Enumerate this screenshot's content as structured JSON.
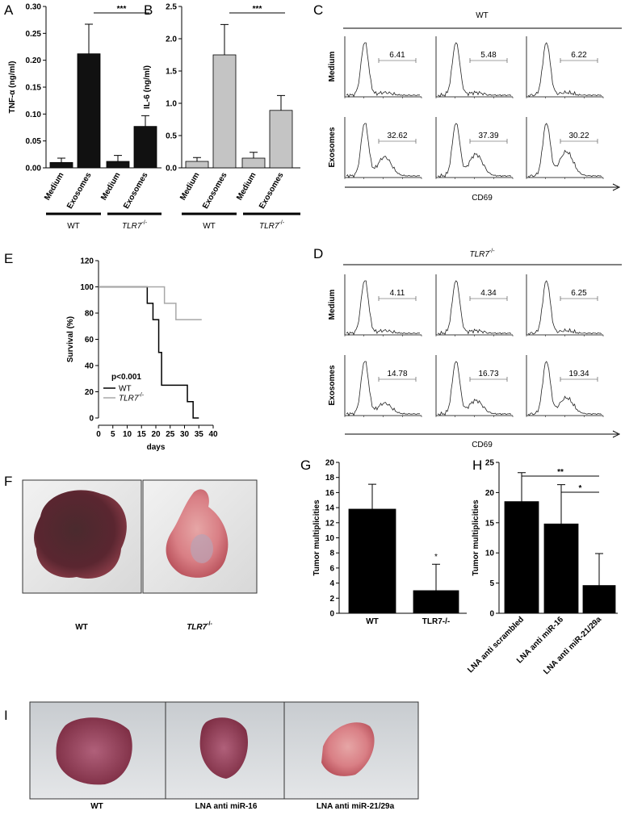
{
  "chart_data": [
    {
      "panel": "A",
      "type": "bar",
      "ylabel": "TNF-α (ng/ml)",
      "categories": [
        "Medium",
        "Exosomes",
        "Medium",
        "Exosomes"
      ],
      "values": [
        0.01,
        0.212,
        0.012,
        0.077
      ],
      "errors": [
        0.008,
        0.055,
        0.011,
        0.02
      ],
      "color": "#111111",
      "ylim": [
        0,
        0.3
      ],
      "yticks": [
        {
          "value": 0,
          "label": "0.00"
        },
        0.05,
        {
          "value": 0.1,
          "label": "0.10"
        },
        0.15,
        {
          "value": 0.2,
          "label": "0.20"
        },
        0.25,
        {
          "value": 0.3,
          "label": "0.30"
        }
      ],
      "groups": [
        {
          "name": "WT"
        },
        {
          "name": "TLR7",
          "sup": "-/-"
        }
      ],
      "annotations": [
        "***"
      ]
    },
    {
      "panel": "B",
      "type": "bar",
      "ylabel": "IL-6 (ng/ml)",
      "categories": [
        "Medium",
        "Exosomes",
        "Medium",
        "Exosomes"
      ],
      "values": [
        0.1,
        1.75,
        0.15,
        0.89
      ],
      "errors": [
        0.06,
        0.47,
        0.09,
        0.23
      ],
      "color": "#c4c4c4",
      "ylim": [
        0,
        2.5
      ],
      "yticks": [
        {
          "value": 0,
          "label": "0.0"
        },
        0.5,
        {
          "value": 1,
          "label": "1.0"
        },
        1.5,
        {
          "value": 2,
          "label": "2.0"
        },
        2.5
      ],
      "groups": [
        {
          "name": "WT"
        },
        {
          "name": "TLR7",
          "sup": "-/-"
        }
      ],
      "annotations": [
        "***"
      ]
    },
    {
      "panel": "E",
      "type": "line",
      "xlabel": "days",
      "ylabel": "Survival (%)",
      "xlim": [
        0,
        40
      ],
      "xticks": [
        0,
        5,
        10,
        15,
        20,
        25,
        30,
        35,
        40
      ],
      "ylim": [
        0,
        120
      ],
      "yticks": [
        0,
        20,
        40,
        60,
        80,
        100,
        120
      ],
      "series": [
        {
          "name": "WT",
          "color": "#000000",
          "x": [
            0,
            17,
            17,
            19,
            19,
            21,
            21,
            22,
            22,
            31,
            31,
            33,
            33,
            35
          ],
          "values": [
            100,
            100,
            87.5,
            87.5,
            75,
            75,
            50,
            50,
            25,
            25,
            12.5,
            12.5,
            0,
            0
          ]
        },
        {
          "name": "TLR7",
          "sup": "-/-",
          "color": "#a8a8a8",
          "x": [
            0,
            23,
            23,
            27,
            27,
            36
          ],
          "values": [
            100,
            100,
            87.5,
            87.5,
            75,
            75
          ]
        }
      ],
      "annotations": [
        "p<0.001"
      ]
    },
    {
      "panel": "G",
      "type": "bar",
      "ylabel": "Tumor multiplicities",
      "categories": [
        "WT",
        "TLR7-/-"
      ],
      "values": [
        13.8,
        3
      ],
      "errors": [
        3.3,
        3.5
      ],
      "color": "#000000",
      "ylim": [
        0,
        20
      ],
      "yticks": [
        0,
        2,
        4,
        6,
        8,
        10,
        12,
        14,
        16,
        18,
        20
      ],
      "annotations": [
        "*"
      ]
    },
    {
      "panel": "H",
      "type": "bar",
      "ylabel": "Tumor multiplicities",
      "categories": [
        "LNA anti scrambled",
        "LNA anti miR-16",
        "LNA anti miR-21/29a"
      ],
      "values": [
        18.5,
        14.8,
        4.6
      ],
      "errors": [
        4.8,
        6.5,
        5.3
      ],
      "color": "#000000",
      "ylim": [
        0,
        25
      ],
      "yticks": [
        0,
        5,
        10,
        15,
        20,
        25
      ],
      "annotations": [
        "**",
        "*"
      ]
    }
  ],
  "flow": [
    {
      "panel": "C",
      "title": {
        "name": "WT"
      },
      "rows": [
        "Medium",
        "Exosomes"
      ],
      "gates": [
        [
          "6.41",
          "5.48",
          "6.22"
        ],
        [
          "32.62",
          "37.39",
          "30.22"
        ]
      ],
      "xlabel": "CD69"
    },
    {
      "panel": "D",
      "title": {
        "name": "TLR7",
        "sup": "-/-"
      },
      "rows": [
        "Medium",
        "Exosomes"
      ],
      "gates": [
        [
          "4.11",
          "4.34",
          "6.25"
        ],
        [
          "14.78",
          "16.73",
          "19.34"
        ]
      ],
      "xlabel": "CD69"
    }
  ],
  "photos": [
    {
      "panel": "F",
      "labels": [
        {
          "name": "WT"
        },
        {
          "name": "TLR7",
          "sup": "-/-"
        }
      ]
    },
    {
      "panel": "I",
      "labels": [
        {
          "name": "WT"
        },
        {
          "name": "LNA anti miR-16"
        },
        {
          "name": "LNA anti miR-21/29a"
        }
      ]
    }
  ]
}
